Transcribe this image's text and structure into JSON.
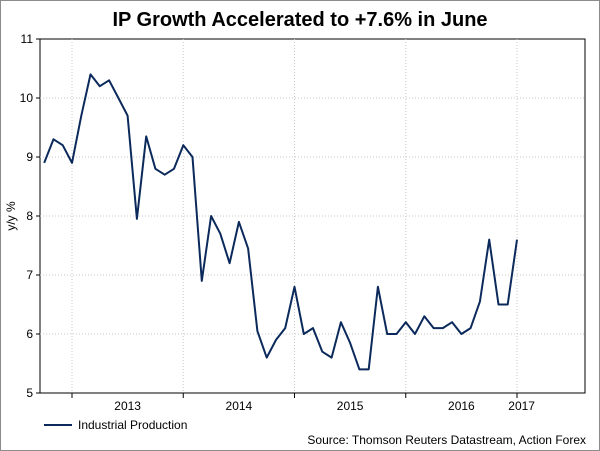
{
  "chart_data": {
    "type": "line",
    "title": "IP Growth Accelerated to +7.6% in June",
    "xlabel": "",
    "ylabel": "y/y %",
    "ylim": [
      5,
      11
    ],
    "yticks": [
      "5",
      "6",
      "7",
      "8",
      "9",
      "10",
      "11"
    ],
    "xticks": [
      "2013",
      "2014",
      "2015",
      "2016",
      "2017"
    ],
    "x_start": "2012-10",
    "x_end": "2017-06",
    "grid": true,
    "legend_position": "bottom-left",
    "source": "Source: Thomson Reuters Datastream, Action Forex",
    "series": [
      {
        "name": "Industrial Production",
        "color": "#0b2a5b",
        "values": [
          8.9,
          9.3,
          9.2,
          8.9,
          9.7,
          10.4,
          10.2,
          10.3,
          10.0,
          9.7,
          7.95,
          9.35,
          8.8,
          8.7,
          8.8,
          9.2,
          9.0,
          6.9,
          8.0,
          7.7,
          7.2,
          7.9,
          7.45,
          6.05,
          5.6,
          5.9,
          6.1,
          6.8,
          6.0,
          6.1,
          5.7,
          5.6,
          6.2,
          5.85,
          5.4,
          5.4,
          6.8,
          6.0,
          6.0,
          6.2,
          6.0,
          6.3,
          6.1,
          6.1,
          6.2,
          6.0,
          6.1,
          6.55,
          7.6,
          6.5,
          6.5,
          7.6
        ]
      }
    ]
  }
}
